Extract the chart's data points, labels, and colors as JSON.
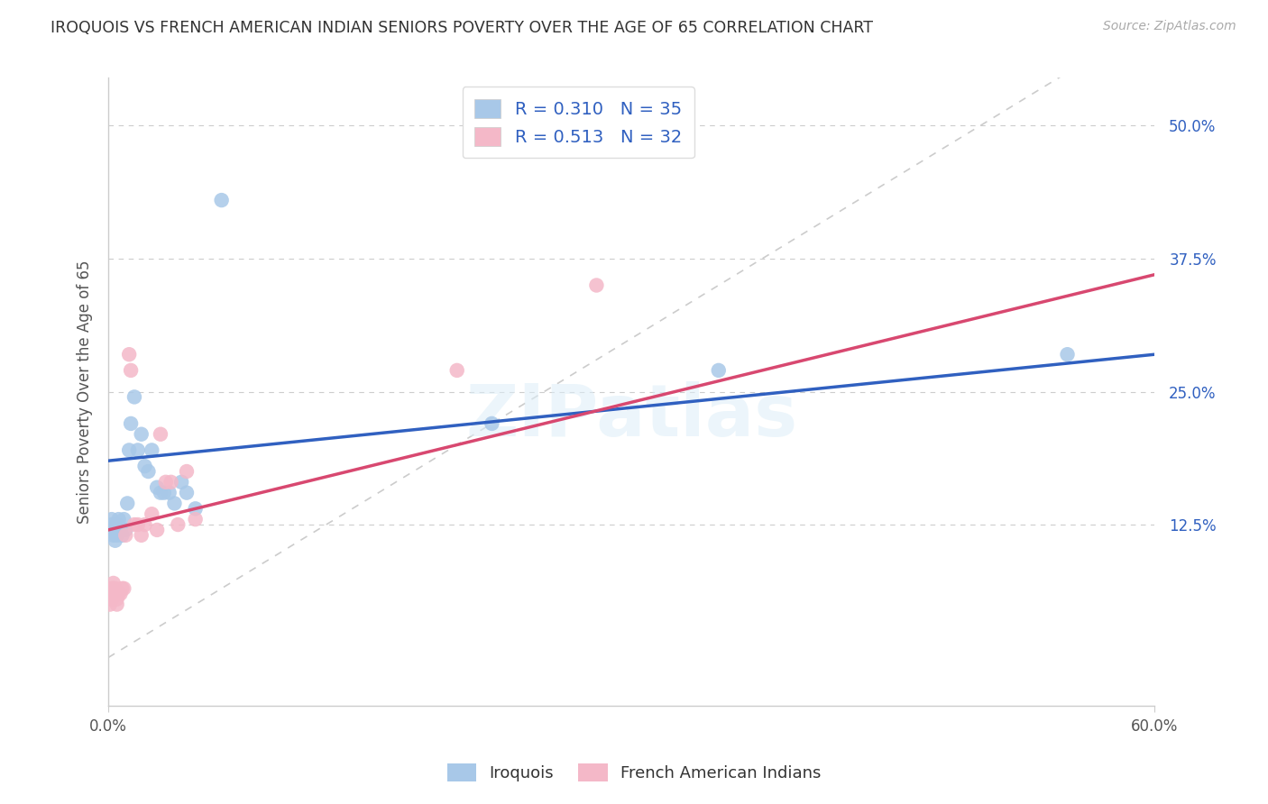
{
  "title": "IROQUOIS VS FRENCH AMERICAN INDIAN SENIORS POVERTY OVER THE AGE OF 65 CORRELATION CHART",
  "source": "Source: ZipAtlas.com",
  "ylabel": "Seniors Poverty Over the Age of 65",
  "ytick_labels": [
    "12.5%",
    "25.0%",
    "37.5%",
    "50.0%"
  ],
  "ytick_values": [
    0.125,
    0.25,
    0.375,
    0.5
  ],
  "xlim": [
    0.0,
    0.6
  ],
  "ylim": [
    -0.045,
    0.545
  ],
  "iroquois_R": 0.31,
  "iroquois_N": 35,
  "french_R": 0.513,
  "french_N": 32,
  "iroquois_color": "#a8c8e8",
  "french_color": "#f4b8c8",
  "iroquois_line_color": "#3060c0",
  "french_line_color": "#d84870",
  "refline_color": "#cccccc",
  "iroquois_marker_edge": "none",
  "french_marker_edge": "none",
  "iroquois_x": [
    0.001,
    0.002,
    0.002,
    0.003,
    0.003,
    0.004,
    0.004,
    0.005,
    0.005,
    0.006,
    0.007,
    0.008,
    0.009,
    0.01,
    0.011,
    0.012,
    0.013,
    0.015,
    0.017,
    0.019,
    0.021,
    0.023,
    0.025,
    0.028,
    0.03,
    0.032,
    0.035,
    0.038,
    0.042,
    0.045,
    0.05,
    0.065,
    0.22,
    0.35,
    0.55
  ],
  "iroquois_y": [
    0.12,
    0.13,
    0.125,
    0.115,
    0.12,
    0.12,
    0.11,
    0.115,
    0.125,
    0.13,
    0.12,
    0.115,
    0.13,
    0.12,
    0.145,
    0.195,
    0.22,
    0.245,
    0.195,
    0.21,
    0.18,
    0.175,
    0.195,
    0.16,
    0.155,
    0.155,
    0.155,
    0.145,
    0.165,
    0.155,
    0.14,
    0.43,
    0.22,
    0.27,
    0.285
  ],
  "french_x": [
    0.001,
    0.002,
    0.002,
    0.002,
    0.003,
    0.003,
    0.003,
    0.004,
    0.004,
    0.005,
    0.005,
    0.006,
    0.007,
    0.008,
    0.009,
    0.01,
    0.012,
    0.013,
    0.015,
    0.017,
    0.019,
    0.021,
    0.025,
    0.028,
    0.03,
    0.033,
    0.036,
    0.04,
    0.045,
    0.05,
    0.2,
    0.28
  ],
  "french_y": [
    0.05,
    0.065,
    0.06,
    0.055,
    0.06,
    0.07,
    0.065,
    0.065,
    0.06,
    0.055,
    0.05,
    0.06,
    0.06,
    0.065,
    0.065,
    0.115,
    0.285,
    0.27,
    0.125,
    0.125,
    0.115,
    0.125,
    0.135,
    0.12,
    0.21,
    0.165,
    0.165,
    0.125,
    0.175,
    0.13,
    0.27,
    0.35
  ],
  "iroquois_line_x0": 0.0,
  "iroquois_line_y0": 0.185,
  "iroquois_line_x1": 0.6,
  "iroquois_line_y1": 0.285,
  "french_line_x0": 0.0,
  "french_line_y0": 0.12,
  "french_line_x1": 0.6,
  "french_line_y1": 0.36,
  "watermark": "ZIPatlas",
  "legend_label_iroquois": "Iroquois",
  "legend_label_french": "French American Indians"
}
